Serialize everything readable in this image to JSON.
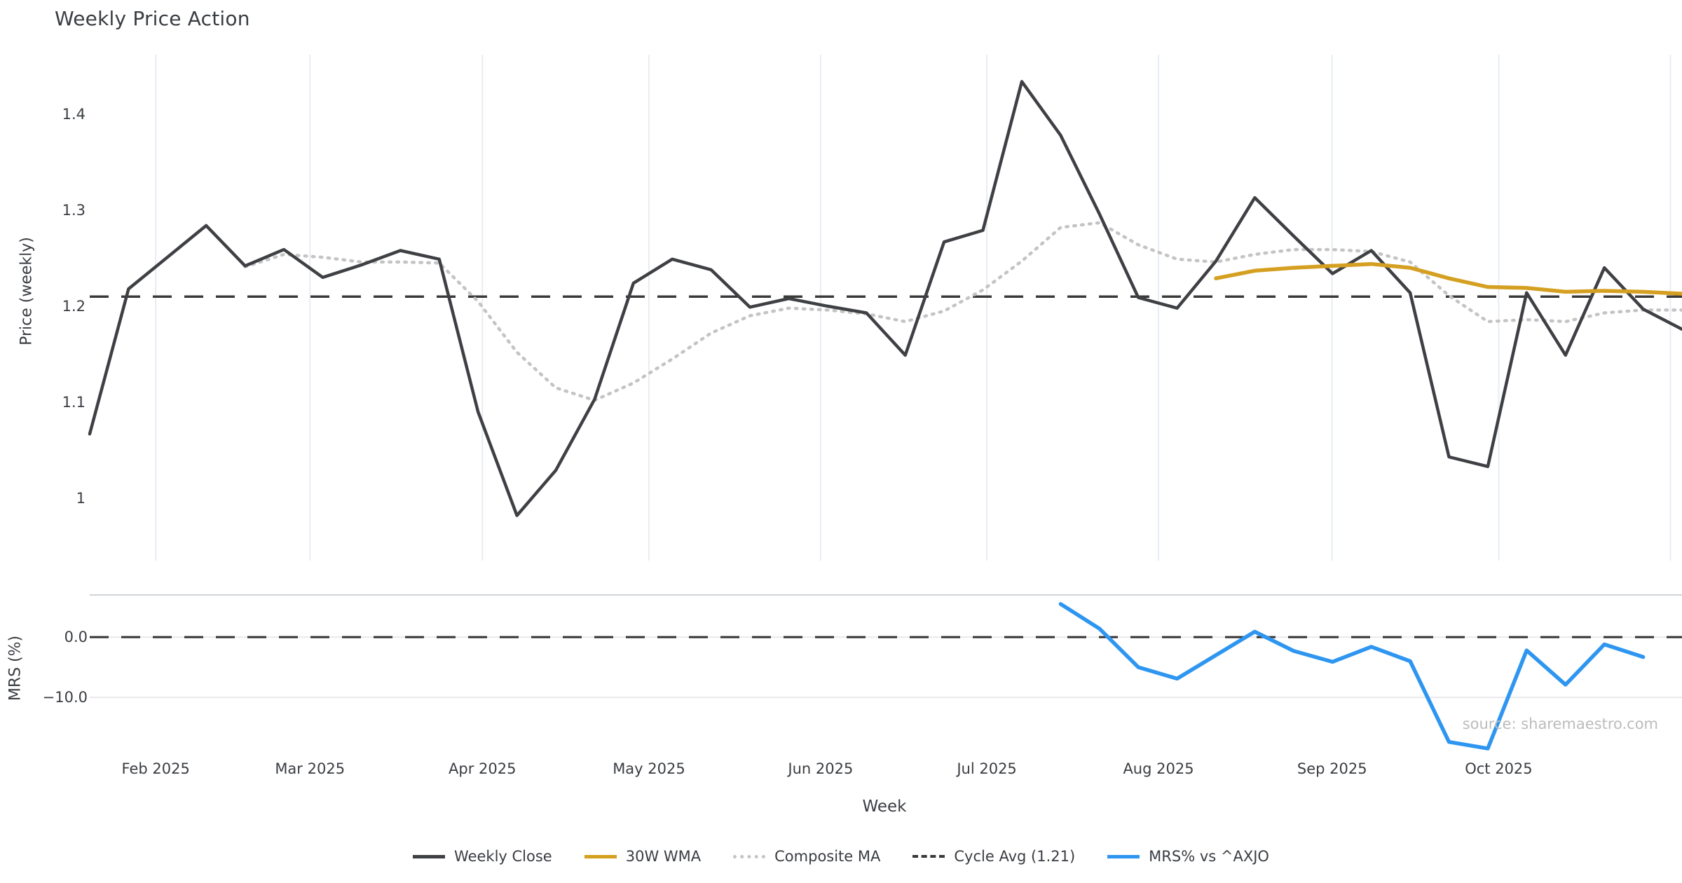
{
  "title": "Weekly Price Action",
  "source_note": "source: sharemaestro.com",
  "colors": {
    "weekly_close": "#3e4044",
    "wma_30w": "#d5a021",
    "composite_ma": "#c4c4c4",
    "cycle_avg": "#3a3a3a",
    "mrs": "#2e96f0",
    "gridline": "#e8edf3",
    "panel_border": "#d0d3d7",
    "h_gridline": "#e9e9ec",
    "tick_text": "#3a3d42"
  },
  "price_panel": {
    "y_axis_label": "Price (weekly)",
    "y_ticks": [
      {
        "label": "1.4",
        "value": 1.4
      },
      {
        "label": "1.3",
        "value": 1.3
      },
      {
        "label": "1.2",
        "value": 1.2
      },
      {
        "label": "1.1",
        "value": 1.1
      },
      {
        "label": "1",
        "value": 1.0
      }
    ],
    "y_range": [
      0.935,
      1.462
    ],
    "cycle_avg_value": 1.21
  },
  "mrs_panel": {
    "y_axis_label": "MRS (%)",
    "y_ticks": [
      {
        "label": "0.0",
        "value": 0
      },
      {
        "label": "−10.0",
        "value": -10
      }
    ],
    "y_range": [
      -19.3,
      7.0
    ],
    "zero_line_value": 0
  },
  "x_axis": {
    "label": "Week",
    "weeks_total": 41,
    "gridline_weeks": [
      1.7,
      5.67,
      10.11,
      14.4,
      18.82,
      23.1,
      27.52,
      31.99,
      36.28,
      40.7
    ],
    "tick_labels": [
      "Feb 2025",
      "Mar 2025",
      "Apr 2025",
      "May 2025",
      "Jun 2025",
      "Jul 2025",
      "Aug 2025",
      "Sep 2025",
      "Oct 2025"
    ]
  },
  "legend": [
    {
      "label": "Weekly Close",
      "swatch": "solid",
      "color": "#3e4044"
    },
    {
      "label": "30W WMA",
      "swatch": "solid",
      "color": "#d5a021"
    },
    {
      "label": "Composite MA",
      "swatch": "dotted",
      "color": "#c4c4c4"
    },
    {
      "label": "Cycle Avg (1.21)",
      "swatch": "dashed",
      "color": "#3a3a3a"
    },
    {
      "label": "MRS% vs ^AXJO",
      "swatch": "solid",
      "color": "#2e96f0"
    }
  ],
  "chart_data": [
    {
      "type": "line",
      "panel": "price",
      "title": "Weekly Price Action",
      "xlabel": "Week",
      "ylabel": "Price (weekly)",
      "ylim": [
        0.935,
        1.462
      ],
      "grid": "vertical-only",
      "legend_position": "bottom-center",
      "series": [
        {
          "name": "Weekly Close",
          "start_week": 0,
          "values": [
            1.067,
            1.218,
            1.251,
            1.284,
            1.242,
            1.259,
            1.23,
            1.243,
            1.258,
            1.249,
            1.09,
            0.982,
            1.029,
            1.103,
            1.224,
            1.249,
            1.238,
            1.199,
            1.208,
            1.2,
            1.193,
            1.149,
            1.267,
            1.279,
            1.434,
            1.378,
            1.296,
            1.209,
            1.198,
            1.247,
            1.313,
            1.273,
            1.234,
            1.258,
            1.214,
            1.043,
            1.033,
            1.214,
            1.149,
            1.24,
            1.197,
            1.176
          ]
        },
        {
          "name": "Composite MA",
          "start_week": 4,
          "values": [
            1.241,
            1.254,
            1.251,
            1.246,
            1.246,
            1.245,
            1.205,
            1.152,
            1.115,
            1.102,
            1.12,
            1.145,
            1.172,
            1.19,
            1.198,
            1.196,
            1.192,
            1.184,
            1.195,
            1.217,
            1.247,
            1.282,
            1.287,
            1.264,
            1.249,
            1.246,
            1.254,
            1.259,
            1.259,
            1.257,
            1.246,
            1.211,
            1.184,
            1.186,
            1.184,
            1.193,
            1.196,
            1.196
          ]
        },
        {
          "name": "30W WMA",
          "start_week": 29,
          "values": [
            1.229,
            1.237,
            1.24,
            1.242,
            1.244,
            1.24,
            1.229,
            1.22,
            1.219,
            1.215,
            1.216,
            1.215,
            1.213
          ]
        },
        {
          "name": "Cycle Avg",
          "constant": 1.21
        }
      ]
    },
    {
      "type": "line",
      "panel": "mrs",
      "xlabel": "Week",
      "ylabel": "MRS (%)",
      "ylim": [
        -19.3,
        7.0
      ],
      "series": [
        {
          "name": "MRS% vs ^AXJO",
          "start_week": 25,
          "values": [
            5.5,
            1.4,
            -5.0,
            -6.9,
            -3.0,
            0.9,
            -2.3,
            -4.1,
            -1.6,
            -4.0,
            -17.4,
            -18.5,
            -2.2,
            -7.9,
            -1.2,
            -3.3
          ]
        },
        {
          "name": "Zero line",
          "constant": 0
        }
      ]
    }
  ]
}
